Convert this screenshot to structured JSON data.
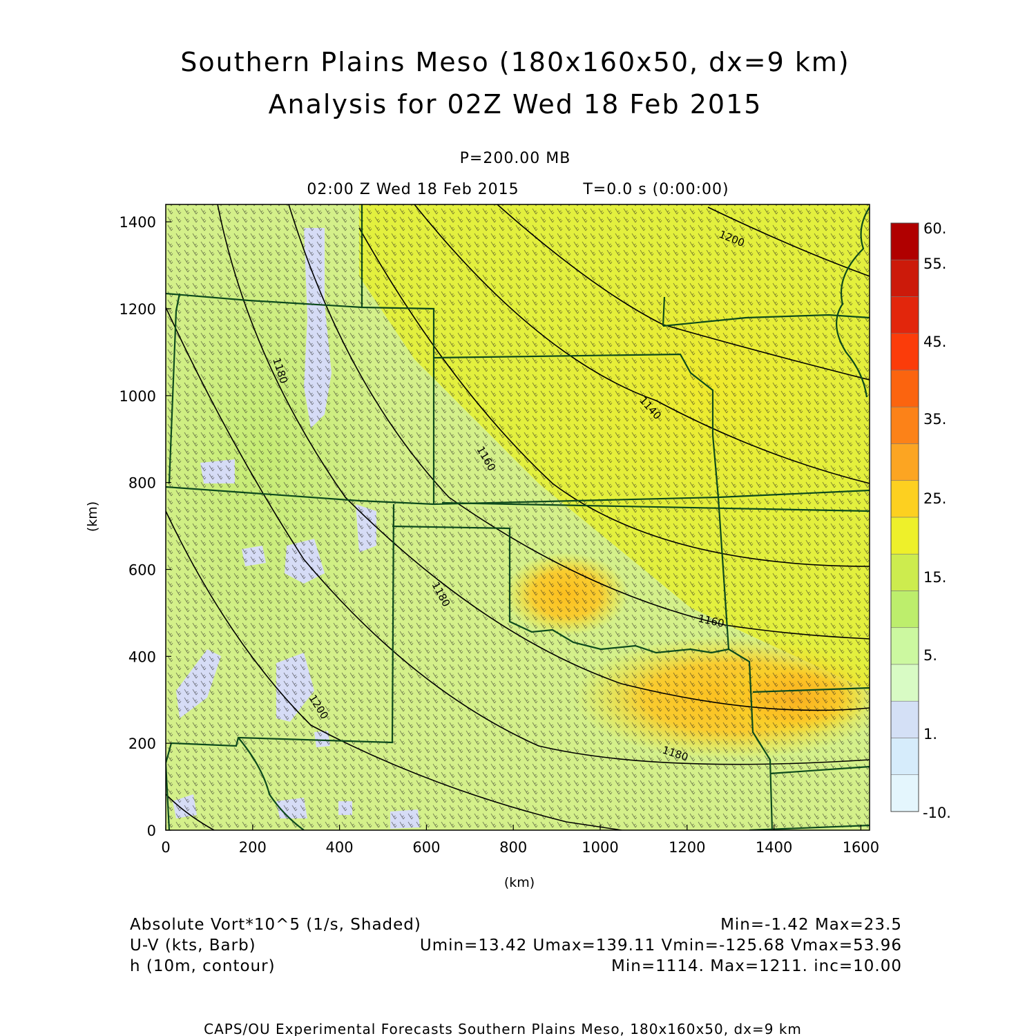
{
  "title": {
    "line1": "Southern Plains Meso (180x160x50, dx=9 km)",
    "line2": "Analysis for 02Z Wed 18 Feb 2015"
  },
  "subtitle": {
    "level": "P=200.00 MB",
    "time": "02:00 Z Wed 18 Feb 2015",
    "timestep": "T=0.0 s (0:00:00)"
  },
  "axes": {
    "x_label": "(km)",
    "y_label": "(km)",
    "x_ticks": [
      "0",
      "200",
      "400",
      "600",
      "800",
      "1000",
      "1200",
      "1400",
      "1600"
    ],
    "y_ticks": [
      "0",
      "200",
      "400",
      "600",
      "800",
      "1000",
      "1200",
      "1400"
    ],
    "x_range_km": [
      0,
      1620
    ],
    "y_range_km": [
      0,
      1440
    ]
  },
  "colorbar": {
    "labels": [
      "60.",
      "55.",
      "45.",
      "35.",
      "25.",
      "15.",
      "5.",
      "1.",
      "-10."
    ],
    "colors_top_to_bottom": [
      "#b00000",
      "#cc1a0a",
      "#e2260c",
      "#fb3c0a",
      "#fb640f",
      "#fc8218",
      "#fca522",
      "#fdd020",
      "#eef02a",
      "#cdec4e",
      "#bdee6c",
      "#ccf8a0",
      "#d8fbc4",
      "#d4e0f6",
      "#d6ecfb",
      "#e4f6fd"
    ]
  },
  "contour_labels": [
    "1200",
    "1140",
    "1160",
    "1180",
    "1180",
    "1200",
    "1160",
    "1180"
  ],
  "legend": {
    "row1": {
      "left": "Absolute Vort*10^5 (1/s, Shaded)",
      "right": "Min=-1.42 Max=23.5"
    },
    "row2": {
      "left": "U-V (kts, Barb)",
      "right": "Umin=13.42 Umax=139.11 Vmin=-125.68 Vmax=53.96"
    },
    "row3": {
      "left": "h (10m, contour)",
      "right": "Min=1114. Max=1211. inc=10.00"
    }
  },
  "footer": "CAPS/OU Experimental Forecasts  Southern Plains Meso, 180x160x50, dx=9 km"
}
